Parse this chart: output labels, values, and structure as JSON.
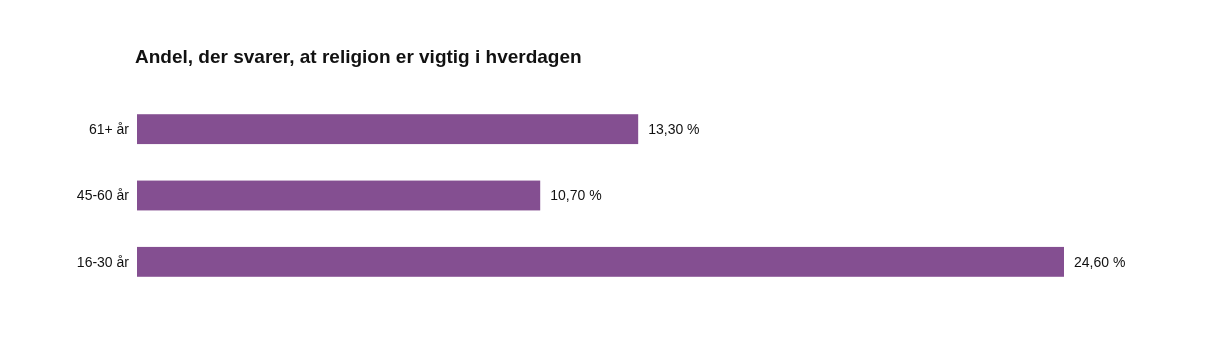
{
  "chart_data": {
    "type": "bar",
    "orientation": "horizontal",
    "title": "Andel, der svarer, at religion er vigtig i hverdagen",
    "categories": [
      "61+ år",
      "45-60 år",
      "16-30 år"
    ],
    "values": [
      13.3,
      10.7,
      24.6
    ],
    "value_labels": [
      "13,30 %",
      "10,70 %",
      "24,60 %"
    ],
    "color": "#844f91"
  }
}
